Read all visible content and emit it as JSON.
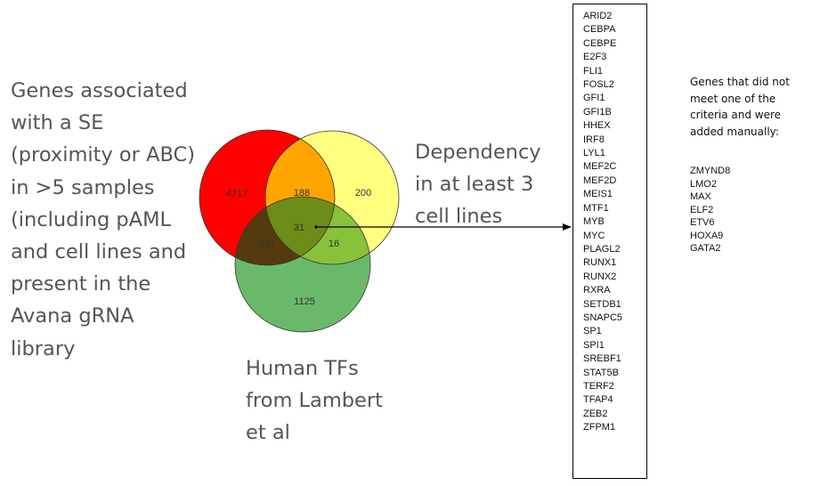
{
  "labels": {
    "se_set": "Genes associated\nwith a SE\n(proximity or ABC)\nin >5 samples\n(including pAML\nand cell lines and\npresent in the\nAvana gRNA\nlibrary",
    "dependency_set": "Dependency\nin at least 3\ncell lines",
    "tf_set": "Human TFs\nfrom Lambert\net al"
  },
  "venn": {
    "se_only": "4717",
    "se_and_dependency": "188",
    "dependency_only": "200",
    "all_three": "31",
    "se_and_tf": "467",
    "dependency_and_tf": "16",
    "tf_only": "1125",
    "colors": {
      "se_circle": "#ff0000",
      "dependency_circle": "#ffff80",
      "tf_circle": "#6ab96a",
      "se_dependency_overlap": "#ffa500",
      "se_tf_overlap": "#553a10",
      "dependency_tf_overlap": "#88c23a",
      "center_overlap": "#6d8c18"
    }
  },
  "gene_list": [
    "ARID2",
    "CEBPA",
    "CEBPE",
    "E2F3",
    "FLI1",
    "FOSL2",
    "GFI1",
    "GFI1B",
    "HHEX",
    "IRF8",
    "LYL1",
    "MEF2C",
    "MEF2D",
    "MEIS1",
    "MTF1",
    "MYB",
    "MYC",
    "PLAGL2",
    "RUNX1",
    "RUNX2",
    "RXRA",
    "SETDB1",
    "SNAPC5",
    "SP1",
    "SPI1",
    "SREBF1",
    "STAT5B",
    "TERF2",
    "TFAP4",
    "ZEB2",
    "ZFPM1"
  ],
  "manual": {
    "heading": "Genes that did not\nmeet one of the\ncriteria and were\nadded manually:",
    "genes": [
      "ZMYND8",
      "LMO2",
      "MAX",
      "ELF2",
      "ETV6",
      "HOXA9",
      "GATA2"
    ]
  }
}
